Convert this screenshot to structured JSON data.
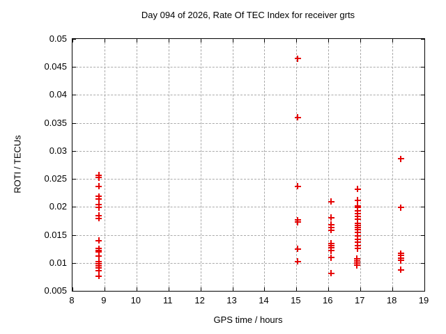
{
  "chart_data": {
    "type": "scatter",
    "title": "Day 094 of 2026, Rate Of TEC Index for receiver grts",
    "xlabel": "GPS time / hours",
    "ylabel": "ROTI / TECUs",
    "xlim": [
      8,
      19
    ],
    "ylim": [
      0.005,
      0.05
    ],
    "xticks": [
      "8",
      "9",
      "10",
      "11",
      "12",
      "13",
      "14",
      "15",
      "16",
      "17",
      "18",
      "19"
    ],
    "yticks": [
      "0.005",
      "0.01",
      "0.015",
      "0.02",
      "0.025",
      "0.03",
      "0.035",
      "0.04",
      "0.045",
      "0.05"
    ],
    "grid": true,
    "legend": "none",
    "marker": "plus",
    "marker_color": "#e60000",
    "series": [
      {
        "name": "ROTI",
        "points": [
          [
            8.83,
            0.0256
          ],
          [
            8.83,
            0.0252
          ],
          [
            8.83,
            0.0236
          ],
          [
            8.83,
            0.0218
          ],
          [
            8.83,
            0.0213
          ],
          [
            8.83,
            0.0203
          ],
          [
            8.83,
            0.0198
          ],
          [
            8.83,
            0.0184
          ],
          [
            8.83,
            0.0179
          ],
          [
            8.83,
            0.0139
          ],
          [
            8.83,
            0.0125
          ],
          [
            8.83,
            0.0122
          ],
          [
            8.83,
            0.0119
          ],
          [
            8.83,
            0.0111
          ],
          [
            8.83,
            0.0102
          ],
          [
            8.83,
            0.0098
          ],
          [
            8.83,
            0.0094
          ],
          [
            8.83,
            0.009
          ],
          [
            8.83,
            0.0085
          ],
          [
            8.83,
            0.0076
          ],
          [
            15.05,
            0.0464
          ],
          [
            15.05,
            0.0359
          ],
          [
            15.05,
            0.0236
          ],
          [
            15.05,
            0.0176
          ],
          [
            15.05,
            0.0172
          ],
          [
            15.05,
            0.0124
          ],
          [
            15.05,
            0.0102
          ],
          [
            16.1,
            0.0209
          ],
          [
            16.1,
            0.018
          ],
          [
            16.1,
            0.0168
          ],
          [
            16.1,
            0.0163
          ],
          [
            16.1,
            0.0158
          ],
          [
            16.1,
            0.0134
          ],
          [
            16.1,
            0.013
          ],
          [
            16.1,
            0.0127
          ],
          [
            16.1,
            0.0121
          ],
          [
            16.1,
            0.0109
          ],
          [
            16.1,
            0.0081
          ],
          [
            16.92,
            0.0231
          ],
          [
            16.92,
            0.0211
          ],
          [
            16.92,
            0.0201
          ],
          [
            16.92,
            0.0198
          ],
          [
            16.92,
            0.0192
          ],
          [
            16.92,
            0.0187
          ],
          [
            16.92,
            0.0182
          ],
          [
            16.92,
            0.0177
          ],
          [
            16.92,
            0.017
          ],
          [
            16.92,
            0.0166
          ],
          [
            16.92,
            0.0162
          ],
          [
            16.92,
            0.0159
          ],
          [
            16.92,
            0.0154
          ],
          [
            16.92,
            0.0148
          ],
          [
            16.92,
            0.0141
          ],
          [
            16.92,
            0.0136
          ],
          [
            16.92,
            0.013
          ],
          [
            16.92,
            0.0125
          ],
          [
            16.9,
            0.0107
          ],
          [
            16.9,
            0.0103
          ],
          [
            16.9,
            0.0099
          ],
          [
            16.9,
            0.0095
          ],
          [
            18.28,
            0.0285
          ],
          [
            18.28,
            0.0198
          ],
          [
            18.28,
            0.0116
          ],
          [
            18.28,
            0.0113
          ],
          [
            18.28,
            0.0108
          ],
          [
            18.28,
            0.0104
          ],
          [
            18.28,
            0.0087
          ]
        ]
      }
    ]
  }
}
